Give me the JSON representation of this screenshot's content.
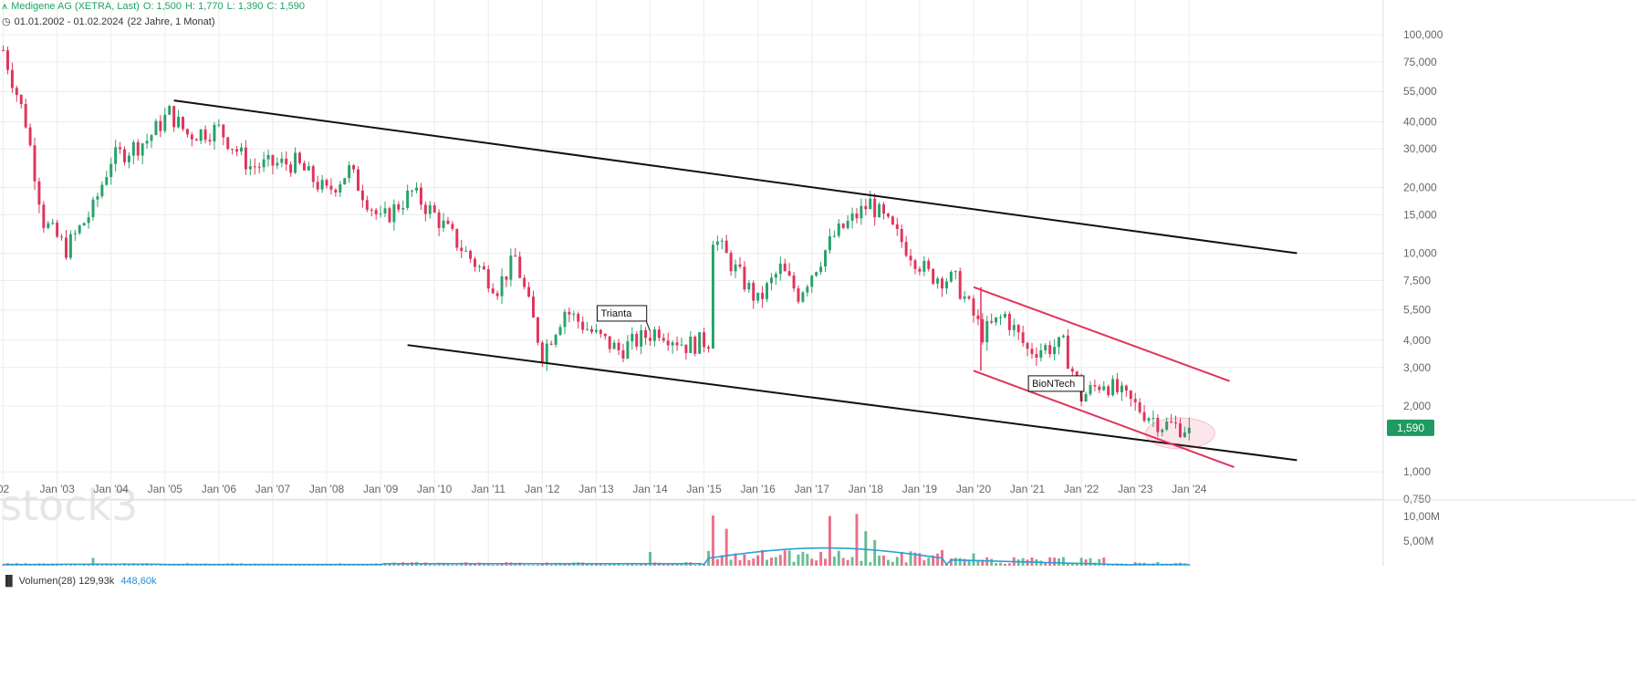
{
  "header": {
    "title": "Medigene AG (XETRA, Last)",
    "ohlc": {
      "o": "O: 1,500",
      "h": "H: 1,770",
      "l": "L: 1,390",
      "c": "C: 1,590"
    },
    "range": "01.01.2002 - 01.02.2024",
    "duration": "(22 Jahre, 1 Monat)"
  },
  "watermark": "stock3",
  "price_label": "1,590",
  "volume_header": {
    "label": "Volumen(28)",
    "value1": "129,93k",
    "value2": "448,60k"
  },
  "colors": {
    "up": "#26a269",
    "down": "#e0345a",
    "trend": "#111111",
    "channel": "#e0345a",
    "avg": "#2a9fd6",
    "grid": "#ececec"
  },
  "chart_data": {
    "type": "candlestick",
    "title": "Medigene AG (XETRA, Last)",
    "x_range": [
      "2002-01",
      "2024-02"
    ],
    "y_scale": "log",
    "ylim": [
      0.75,
      100
    ],
    "y_ticks": [
      "100,000",
      "75,000",
      "55,000",
      "40,000",
      "30,000",
      "20,000",
      "15,000",
      "10,000",
      "7,500",
      "5,500",
      "4,000",
      "3,000",
      "2,000",
      "1,000",
      "0,750"
    ],
    "x_ticks": [
      "02",
      "Jan '03",
      "Jan '04",
      "Jan '05",
      "Jan '06",
      "Jan '07",
      "Jan '08",
      "Jan '09",
      "Jan '10",
      "Jan '11",
      "Jan '12",
      "Jan '13",
      "Jan '14",
      "Jan '15",
      "Jan '16",
      "Jan '17",
      "Jan '18",
      "Jan '19",
      "Jan '20",
      "Jan '21",
      "Jan '22",
      "Jan '23",
      "Jan '24"
    ],
    "price_path": [
      [
        "2002-01",
        85
      ],
      [
        "2002-06",
        40
      ],
      [
        "2002-10",
        14
      ],
      [
        "2003-03",
        10.5
      ],
      [
        "2003-09",
        16
      ],
      [
        "2004-01",
        27
      ],
      [
        "2004-09",
        33
      ],
      [
        "2005-02",
        44
      ],
      [
        "2005-06",
        35
      ],
      [
        "2006-01",
        37
      ],
      [
        "2006-08",
        25
      ],
      [
        "2007-06",
        26
      ],
      [
        "2008-01",
        19
      ],
      [
        "2008-06",
        24
      ],
      [
        "2009-01",
        14
      ],
      [
        "2009-08",
        19
      ],
      [
        "2010-01",
        15
      ],
      [
        "2010-08",
        10
      ],
      [
        "2011-03",
        7
      ],
      [
        "2011-07",
        9.5
      ],
      [
        "2012-01",
        3.5
      ],
      [
        "2012-06",
        5.5
      ],
      [
        "2013-01",
        4.2
      ],
      [
        "2013-06",
        3.6
      ],
      [
        "2014-03",
        4.5
      ],
      [
        "2014-09",
        3.8
      ],
      [
        "2015-02",
        4.0
      ],
      [
        "2015-03",
        12
      ],
      [
        "2015-07",
        9
      ],
      [
        "2016-01",
        6
      ],
      [
        "2016-06",
        8.5
      ],
      [
        "2016-10",
        6.5
      ],
      [
        "2017-06",
        12
      ],
      [
        "2018-02",
        17
      ],
      [
        "2018-08",
        12
      ],
      [
        "2019-03",
        8
      ],
      [
        "2019-09",
        7.5
      ],
      [
        "2020-03",
        4.3
      ],
      [
        "2020-08",
        5.2
      ],
      [
        "2021-01",
        3.6
      ],
      [
        "2021-09",
        3.8
      ],
      [
        "2022-01",
        2.2
      ],
      [
        "2022-06",
        2.6
      ],
      [
        "2023-01",
        2.0
      ],
      [
        "2023-07",
        1.65
      ],
      [
        "2024-01",
        1.59
      ]
    ],
    "last_candle": {
      "date": "2024-01",
      "open": 1.5,
      "high": 1.77,
      "low": 1.39,
      "close": 1.59
    },
    "trendlines": [
      {
        "name": "upper-trendline",
        "from": [
          "2005-03",
          50
        ],
        "to": [
          "2026-01",
          10
        ]
      },
      {
        "name": "lower-trendline",
        "from": [
          "2009-07",
          3.8
        ],
        "to": [
          "2026-01",
          1.13
        ]
      },
      {
        "name": "channel-top",
        "from": [
          "2020-01",
          7.0
        ],
        "to": [
          "2024-10",
          2.6
        ]
      },
      {
        "name": "channel-bottom",
        "from": [
          "2020-01",
          2.9
        ],
        "to": [
          "2024-11",
          1.05
        ]
      }
    ],
    "annotations": [
      {
        "text": "Trianta",
        "date": "2014-01",
        "price": 4.4
      },
      {
        "text": "BioNTech",
        "date": "2022-01",
        "price": 2.1
      }
    ],
    "volume": {
      "label": "Volumen(28)",
      "y_ticks": [
        "10,00M",
        "5,00M"
      ],
      "spikes": [
        [
          "2003-09",
          1.6
        ],
        [
          "2014-01",
          2.8
        ],
        [
          "2015-03",
          10.2
        ],
        [
          "2015-06",
          7.5
        ],
        [
          "2016-06",
          2.2
        ],
        [
          "2017-05",
          10.1
        ],
        [
          "2017-11",
          10.5
        ],
        [
          "2018-01",
          7.0
        ],
        [
          "2018-03",
          5.2
        ],
        [
          "2020-01",
          2.5
        ],
        [
          "2022-01",
          1.6
        ]
      ]
    }
  }
}
